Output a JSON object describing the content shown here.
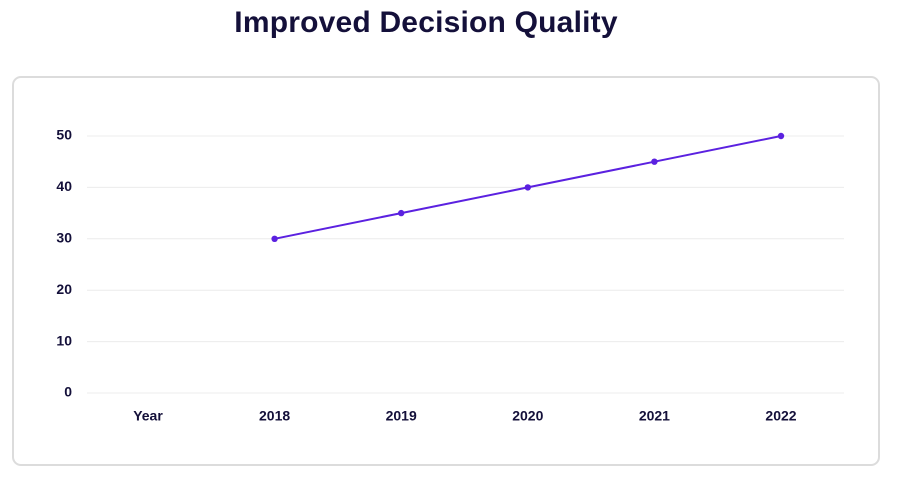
{
  "title": "Improved Decision Quality",
  "colors": {
    "line": "#5b21e0",
    "grid": "#ececec",
    "text": "#14103a",
    "card_border": "#dcdcdc"
  },
  "chart_data": {
    "type": "line",
    "title": "Improved Decision Quality",
    "xlabel": "",
    "ylabel": "",
    "categories": [
      "Year",
      "2018",
      "2019",
      "2020",
      "2021",
      "2022"
    ],
    "series": [
      {
        "values": [
          null,
          30,
          35,
          40,
          45,
          50
        ]
      }
    ],
    "ylim": [
      0,
      50
    ],
    "yticks": [
      0,
      10,
      20,
      30,
      40,
      50
    ],
    "grid": true,
    "legend": "none"
  }
}
